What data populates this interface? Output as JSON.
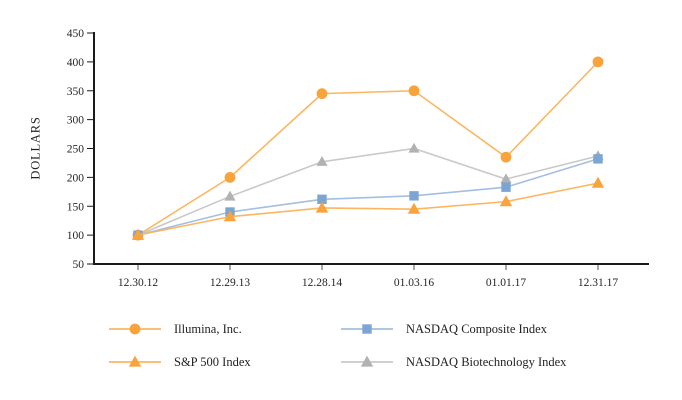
{
  "chart_data": {
    "type": "line",
    "title": "",
    "xlabel": "",
    "ylabel": "DOLLARS",
    "categories": [
      "12.30.12",
      "12.29.13",
      "12.28.14",
      "01.03.16",
      "01.01.17",
      "12.31.17"
    ],
    "ylim": [
      50,
      450
    ],
    "yticks": [
      50,
      100,
      150,
      200,
      250,
      300,
      350,
      400,
      450
    ],
    "grid": false,
    "legend_position": "bottom",
    "axis_color": "#1a1a1a",
    "x_tick_color": "#8a8a8a",
    "text_color": "#262626",
    "series": [
      {
        "name": "Illumina, Inc.",
        "marker": "circle",
        "color": "#F8A33B",
        "line_color": "#FBB660",
        "values": [
          100,
          200,
          345,
          350,
          235,
          400
        ]
      },
      {
        "name": "NASDAQ Composite Index",
        "marker": "square",
        "color": "#7CA5D4",
        "line_color": "#A3BFDF",
        "values": [
          100,
          140,
          162,
          168,
          183,
          232
        ]
      },
      {
        "name": "S&P 500 Index",
        "marker": "triangle",
        "color": "#F8A33B",
        "line_color": "#FBB660",
        "values": [
          100,
          132,
          147,
          145,
          158,
          190
        ]
      },
      {
        "name": "NASDAQ Biotechnology Index",
        "marker": "triangle",
        "color": "#B2B2B5",
        "line_color": "#C9C9CC",
        "values": [
          100,
          167,
          227,
          250,
          197,
          237
        ]
      }
    ]
  }
}
